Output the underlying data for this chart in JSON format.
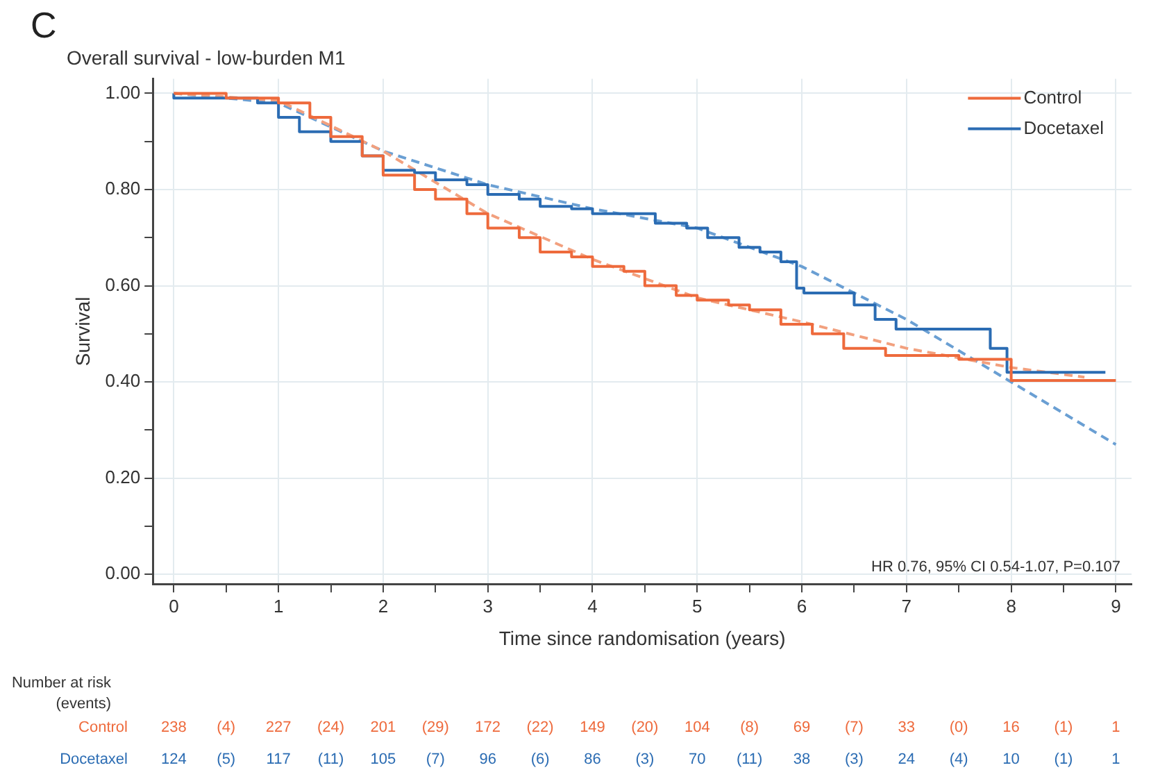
{
  "chart_data": {
    "type": "step",
    "title": "Overall survival - low-burden M1",
    "xlabel": "Time since randomisation (years)",
    "ylabel": "Survival",
    "xlim": [
      -0.2,
      9.15
    ],
    "ylim": [
      -0.02,
      1.03
    ],
    "xticks": [
      0,
      {
        "value": 0.5,
        "label": null
      },
      1,
      {
        "value": 1.5,
        "label": null
      },
      2,
      {
        "value": 2.5,
        "label": null
      },
      3,
      {
        "value": 3.5,
        "label": null
      },
      4,
      {
        "value": 4.5,
        "label": null
      },
      5,
      {
        "value": 5.5,
        "label": null
      },
      6,
      {
        "value": 6.5,
        "label": null
      },
      7,
      {
        "value": 7.5,
        "label": null
      },
      8,
      {
        "value": 8.5,
        "label": null
      },
      9
    ],
    "yticks": [
      {
        "value": 0,
        "label": "0.00"
      },
      {
        "value": 0.1,
        "label": null
      },
      {
        "value": 0.2,
        "label": "0.20"
      },
      {
        "value": 0.3,
        "label": null
      },
      {
        "value": 0.4,
        "label": "0.40"
      },
      {
        "value": 0.5,
        "label": null
      },
      {
        "value": 0.6,
        "label": "0.60"
      },
      {
        "value": 0.7,
        "label": null
      },
      {
        "value": 0.8,
        "label": "0.80"
      },
      {
        "value": 0.9,
        "label": null
      },
      {
        "value": 1,
        "label": "1.00"
      }
    ],
    "grid": true,
    "legend": "top right",
    "marker": "none",
    "series": [
      {
        "name": "Control",
        "color": "#ee6a3c",
        "x": [
          0,
          0.5,
          0.8,
          1.0,
          1.3,
          1.5,
          1.8,
          2.0,
          2.3,
          2.5,
          2.8,
          3.0,
          3.3,
          3.5,
          3.8,
          4.0,
          4.3,
          4.5,
          4.8,
          5.0,
          5.3,
          5.5,
          5.8,
          6.1,
          6.4,
          6.8,
          6.92,
          7.5,
          8.0,
          8.5,
          9.0
        ],
        "values": [
          1.0,
          1.0,
          0.99,
          0.99,
          0.98,
          0.95,
          0.91,
          0.87,
          0.83,
          0.8,
          0.78,
          0.75,
          0.72,
          0.7,
          0.67,
          0.66,
          0.64,
          0.63,
          0.6,
          0.58,
          0.57,
          0.56,
          0.55,
          0.52,
          0.5,
          0.47,
          0.455,
          0.455,
          0.447,
          0.403,
          0.403
        ]
      },
      {
        "name": "Docetaxel",
        "color": "#2b6cb3",
        "x": [
          0,
          0.5,
          0.8,
          1.0,
          1.2,
          1.5,
          1.8,
          2.0,
          2.3,
          2.5,
          2.8,
          3.0,
          3.3,
          3.5,
          3.8,
          4.0,
          4.3,
          4.6,
          4.9,
          5.1,
          5.4,
          5.6,
          5.8,
          5.95,
          6.02,
          6.5,
          6.7,
          6.9,
          7.1,
          7.8,
          7.96,
          8.05,
          8.9
        ],
        "values": [
          1.0,
          0.99,
          0.99,
          0.98,
          0.95,
          0.92,
          0.9,
          0.87,
          0.84,
          0.835,
          0.82,
          0.81,
          0.79,
          0.78,
          0.765,
          0.76,
          0.75,
          0.75,
          0.73,
          0.72,
          0.7,
          0.68,
          0.67,
          0.65,
          0.595,
          0.585,
          0.56,
          0.53,
          0.51,
          0.51,
          0.47,
          0.42,
          0.42
        ]
      },
      {
        "color": "#f2a07e",
        "type": "line",
        "line_style": "dashed",
        "x": [
          0,
          1,
          2,
          3,
          4,
          5,
          6,
          7,
          8,
          8.7
        ],
        "values": [
          1.0,
          0.985,
          0.88,
          0.75,
          0.655,
          0.575,
          0.525,
          0.47,
          0.43,
          0.41
        ]
      },
      {
        "color": "#6a9fd3",
        "type": "line",
        "line_style": "dashed",
        "x": [
          0,
          1,
          2,
          3,
          4,
          5,
          6,
          7,
          8,
          9
        ],
        "values": [
          1.0,
          0.98,
          0.88,
          0.81,
          0.76,
          0.72,
          0.64,
          0.53,
          0.4,
          0.27
        ]
      }
    ],
    "annotations": [
      "C",
      "HR 0.76, 95% CI 0.54-1.07, P=0.107",
      "Number at risk",
      "(events)",
      "Control",
      "238",
      "(4)",
      "227",
      "(24)",
      "201",
      "(29)",
      "172",
      "(22)",
      "149",
      "(20)",
      "104",
      "(8)",
      "69",
      "(7)",
      "33",
      "(0)",
      "16",
      "(1)",
      "1",
      "Docetaxel",
      "124",
      "(5)",
      "117",
      "(11)",
      "105",
      "(7)",
      "96",
      "(6)",
      "86",
      "(3)",
      "70",
      "(11)",
      "38",
      "(3)",
      "24",
      "(4)",
      "10",
      "(1)",
      "1"
    ]
  }
}
